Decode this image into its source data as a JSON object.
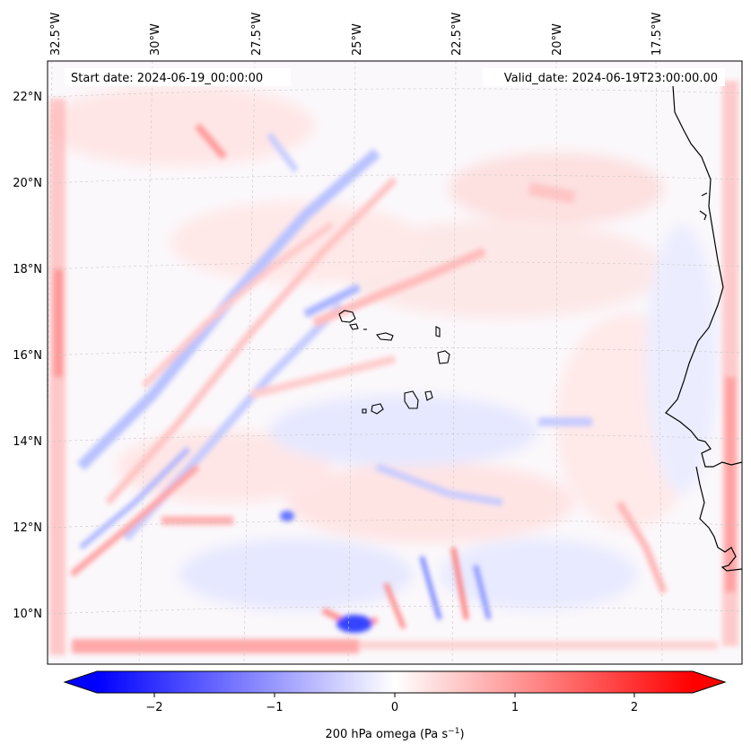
{
  "annotations": {
    "start_date": "Start date: 2024-06-19_00:00:00",
    "valid_date": "Valid_date: 2024-06-19T23:00:00.00"
  },
  "longitude_labels": [
    "32.5°W",
    "30°W",
    "27.5°W",
    "25°W",
    "22.5°W",
    "20°W",
    "17.5°W"
  ],
  "latitude_labels": [
    "22°N",
    "20°N",
    "18°N",
    "16°N",
    "14°N",
    "12°N",
    "10°N"
  ],
  "colorbar": {
    "ticks": [
      "−2",
      "−1",
      "0",
      "1",
      "2"
    ],
    "label_main": "200 hPa omega (Pa s",
    "label_sup": "−1",
    "label_end": ")",
    "range": [
      -2.7,
      2.7
    ],
    "extend": "both",
    "colormap": "bwr"
  },
  "colors": {
    "negative": "#0000ff",
    "zero": "#ffffff",
    "positive": "#ff0000",
    "coastline": "#000000",
    "gridline": "#c8c8c8"
  },
  "chart_data": {
    "type": "heatmap",
    "variable": "200 hPa omega",
    "units": "Pa s-1",
    "lon_range": [
      -33,
      -14.5
    ],
    "lat_range": [
      9,
      22.8
    ],
    "value_range": [
      -2.7,
      2.7
    ],
    "gridlines": true
  }
}
